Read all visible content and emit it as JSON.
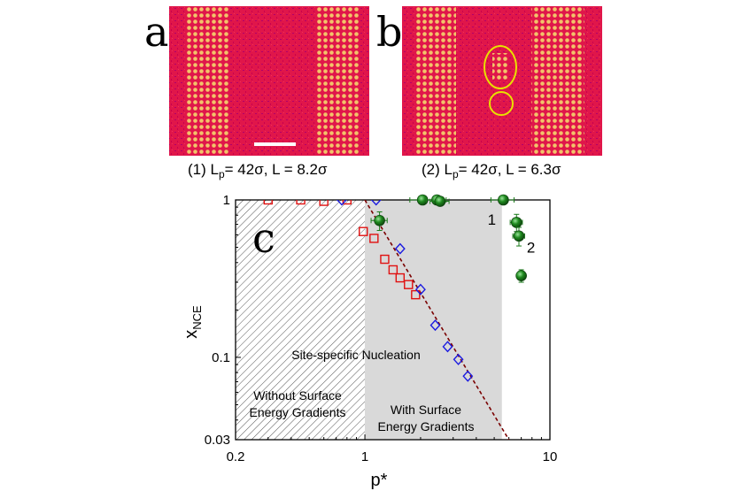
{
  "panels": {
    "a": {
      "letter": "a",
      "caption_prefix": "(1) L",
      "caption_sub": "p",
      "caption_rest": "= 42σ, L = 8.2σ"
    },
    "b": {
      "letter": "b",
      "caption_prefix": "(2) L",
      "caption_sub": "p",
      "caption_rest": "= 42σ, L = 6.3σ"
    },
    "c": {
      "letter": "c"
    }
  },
  "colors": {
    "micrograph_bg": "#e0164a",
    "micrograph_noise": "#b0006a",
    "particle": "#f2c36a",
    "scale_bar": "#ffffff",
    "annotation_circle": "#e8e000",
    "series_red": "#e01010",
    "series_blue": "#1a1ae0",
    "series_green": "#1a7a1a",
    "fit_line": "#7a0000",
    "shaded_region": "#d9d9d9"
  },
  "chart_data": {
    "type": "scatter",
    "x_scale": "log",
    "y_scale": "log",
    "xlim": [
      0.2,
      10
    ],
    "ylim": [
      0.03,
      1
    ],
    "xlabel": "p*",
    "ylabel_main": "x",
    "ylabel_sub": "NCE",
    "x_ticks": [
      {
        "value": 0.2,
        "label": "0.2"
      },
      {
        "value": 1,
        "label": "1"
      },
      {
        "value": 10,
        "label": "10"
      }
    ],
    "y_ticks": [
      {
        "value": 0.03,
        "label": "0.03"
      },
      {
        "value": 0.1,
        "label": "0.1"
      },
      {
        "value": 1,
        "label": "1"
      }
    ],
    "regions": [
      {
        "name": "hatched",
        "x_range": [
          0.2,
          1
        ],
        "label_lines": [
          "Without Surface",
          "Energy Gradients"
        ]
      },
      {
        "name": "shaded",
        "x_range": [
          1,
          5.5
        ],
        "label_lines": [
          "With Surface",
          "Energy Gradients"
        ]
      }
    ],
    "center_label": "Site-specific Nucleation",
    "series": [
      {
        "name": "red squares",
        "marker": "square",
        "x": [
          0.3,
          0.45,
          0.6,
          0.8,
          0.98,
          1.12,
          1.28,
          1.42,
          1.55,
          1.72,
          1.88
        ],
        "y": [
          1.0,
          1.0,
          0.98,
          1.0,
          0.63,
          0.57,
          0.42,
          0.36,
          0.32,
          0.29,
          0.25
        ]
      },
      {
        "name": "blue diamonds",
        "marker": "diamond",
        "x": [
          0.75,
          1.15,
          1.55,
          2.0,
          2.4,
          2.8,
          3.2,
          3.6
        ],
        "y": [
          1.0,
          1.0,
          0.49,
          0.27,
          0.16,
          0.117,
          0.097,
          0.076
        ]
      },
      {
        "name": "green spheres",
        "marker": "sphere",
        "x": [
          1.2,
          2.05,
          2.45,
          2.55,
          5.6,
          6.6,
          6.8,
          7.0
        ],
        "y": [
          0.74,
          1.0,
          1.0,
          0.98,
          1.0,
          0.72,
          0.59,
          0.33
        ],
        "xerr": [
          0.12,
          0.3,
          0.3,
          0.3,
          0.8,
          0.5,
          0.5,
          0.3
        ],
        "yerr": [
          0.1,
          0,
          0,
          0,
          0,
          0.09,
          0.08,
          0.03
        ]
      }
    ],
    "fit_line": {
      "style": "dashed",
      "x": [
        1.0,
        6.0
      ],
      "y": [
        1.0,
        0.03
      ]
    },
    "annotations": [
      {
        "text": "1",
        "x": 4.85,
        "y": 0.75
      },
      {
        "text": "2",
        "x": 7.9,
        "y": 0.5
      }
    ]
  }
}
